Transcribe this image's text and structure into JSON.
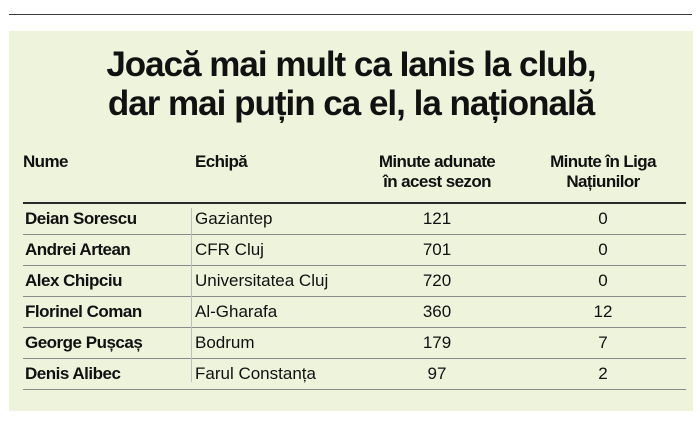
{
  "title": {
    "line1": "Joacă mai mult ca Ianis la club,",
    "line2": "dar mai puțin ca el, la națională"
  },
  "table": {
    "headers": {
      "name": "Nume",
      "team": "Echipă",
      "minutes_line1": "Minute adunate",
      "minutes_line2": "în acest sezon",
      "league_line1": "Minute în Liga",
      "league_line2": "Națiunilor"
    },
    "rows": [
      {
        "name": "Deian Sorescu",
        "team": "Gaziantep",
        "minutes": "121",
        "league": "0"
      },
      {
        "name": "Andrei Artean",
        "team": "CFR Cluj",
        "minutes": "701",
        "league": "0"
      },
      {
        "name": "Alex Chipciu",
        "team": "Universitatea Cluj",
        "minutes": "720",
        "league": "0"
      },
      {
        "name": "Florinel Coman",
        "team": "Al-Gharafa",
        "minutes": "360",
        "league": "12"
      },
      {
        "name": "George Pușcaș",
        "team": "Bodrum",
        "minutes": "179",
        "league": "7"
      },
      {
        "name": "Denis Alibec",
        "team": "Farul Constanța",
        "minutes": "97",
        "league": "2"
      }
    ]
  }
}
